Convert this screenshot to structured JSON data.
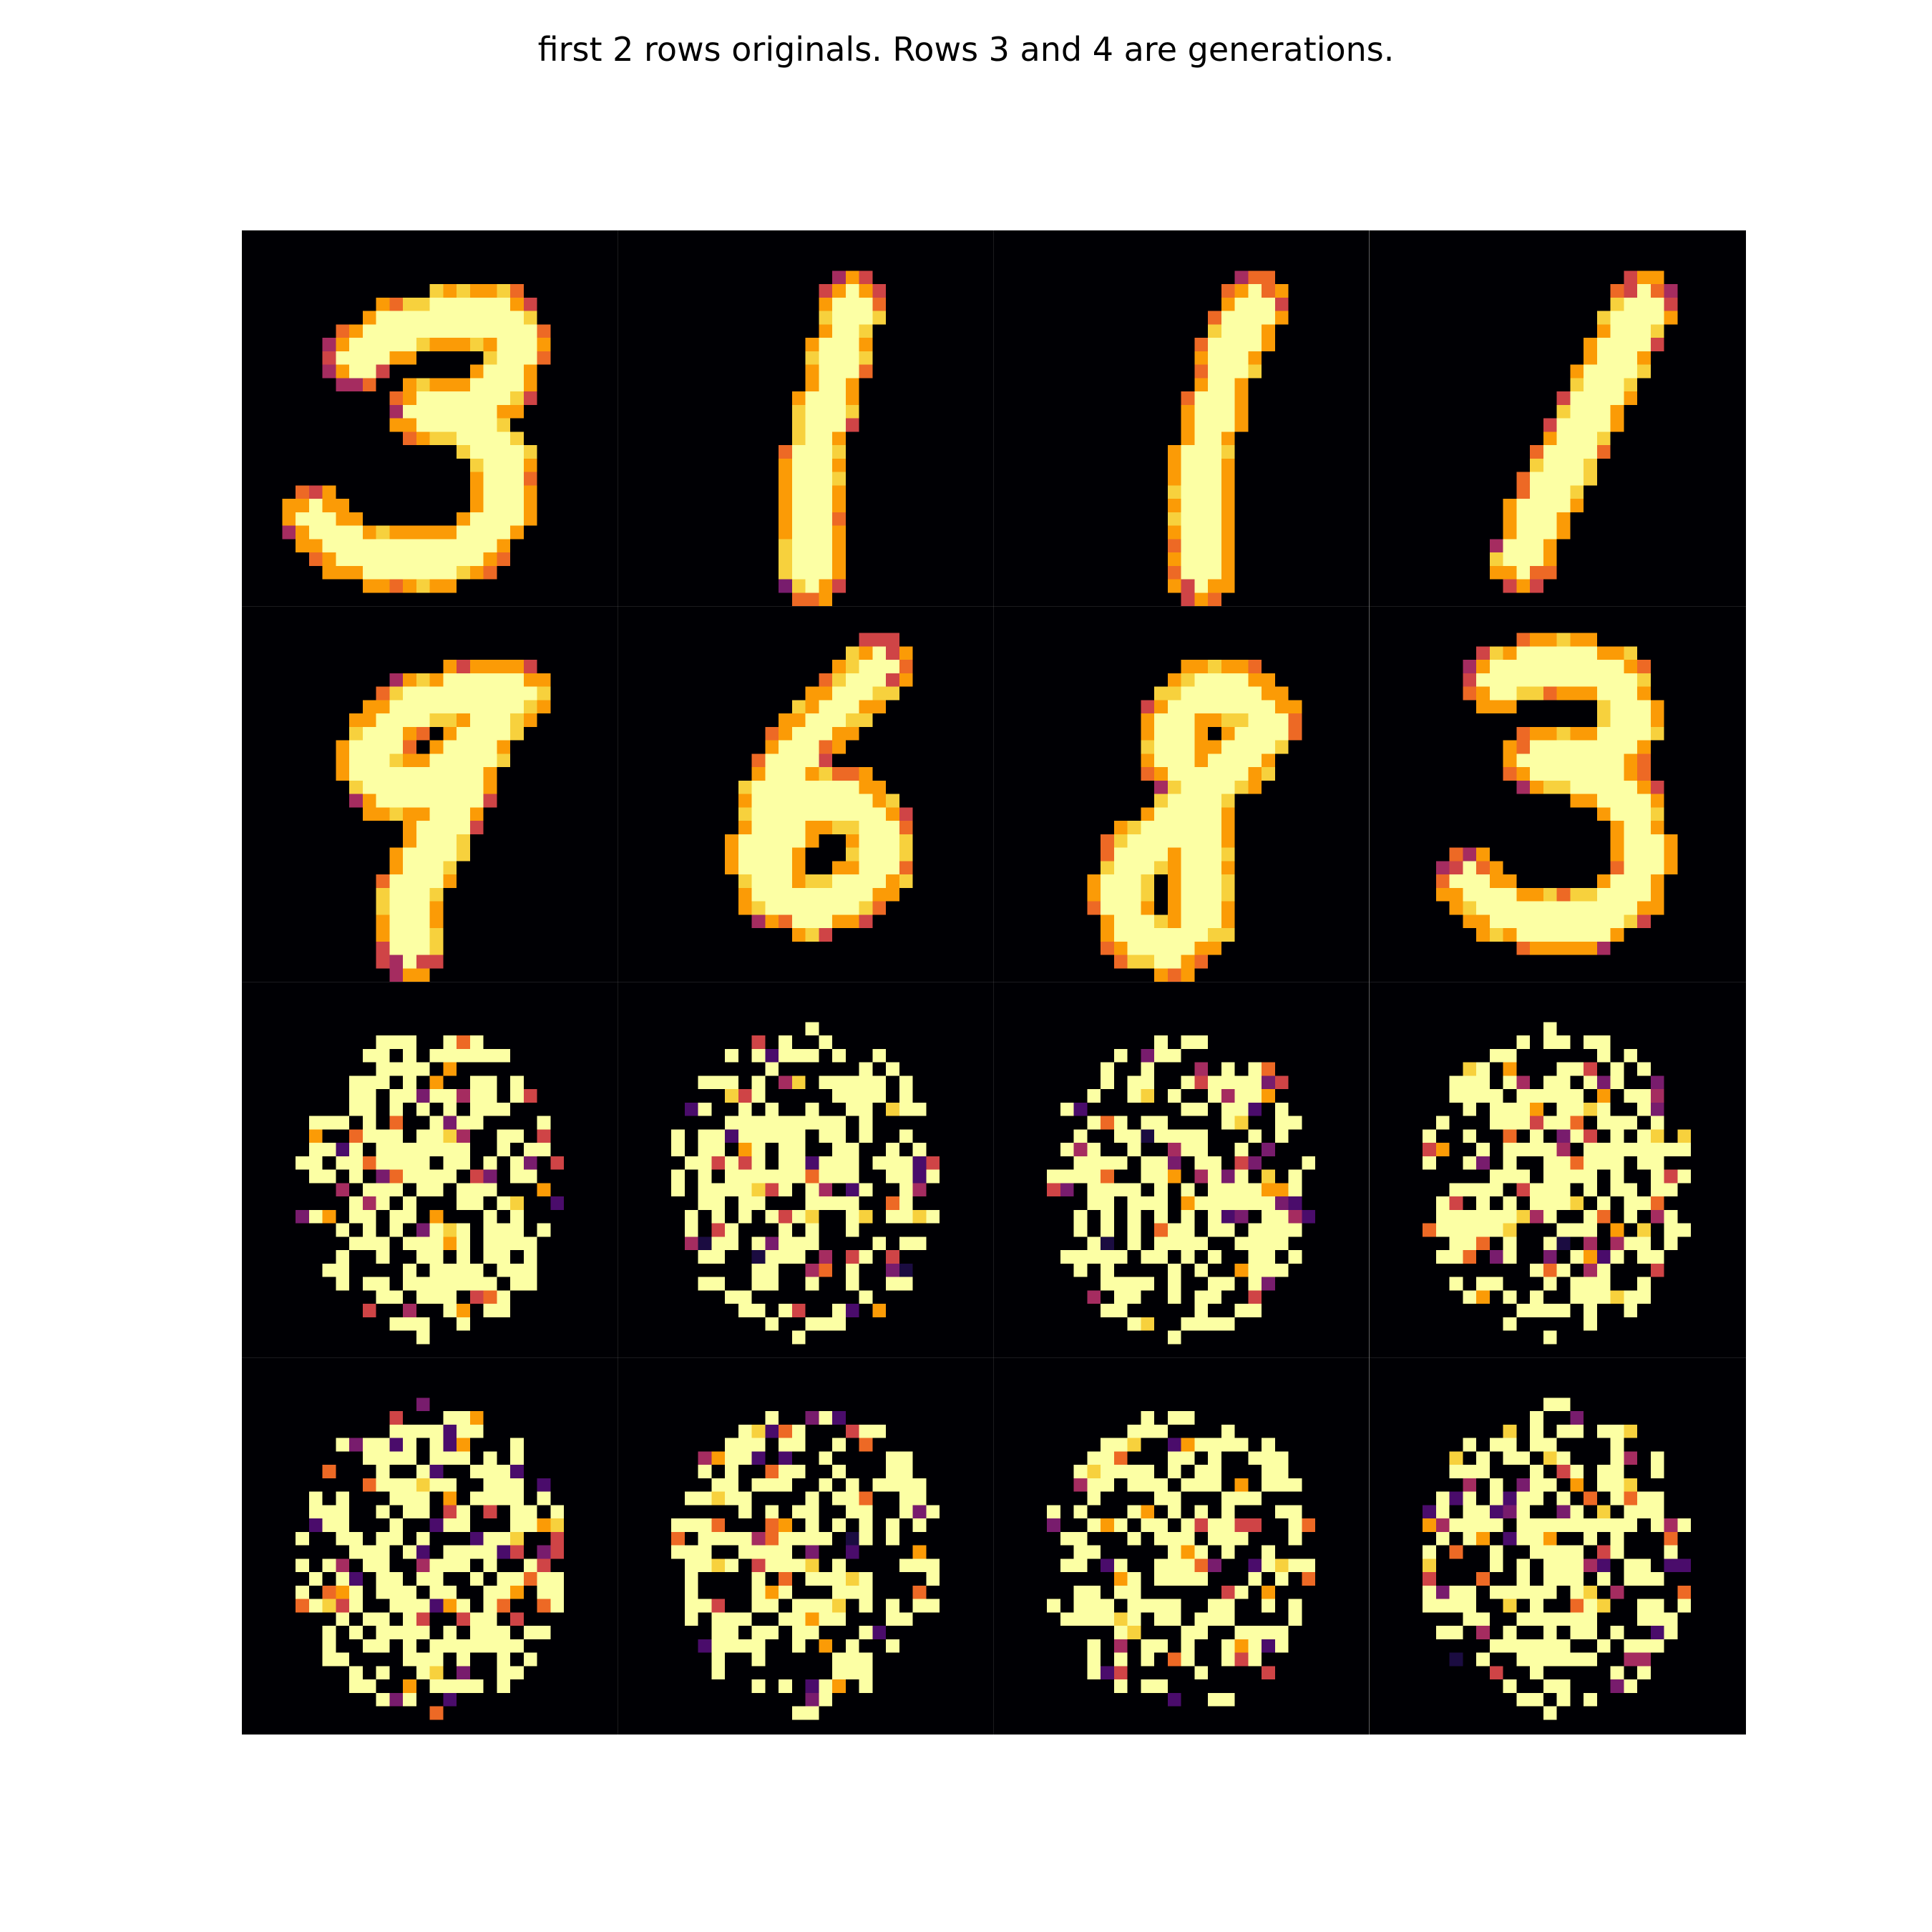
{
  "figure": {
    "title": "first 2 rows originals. Rows 3 and 4 are generations."
  },
  "colormap": {
    "name": "inferno",
    "colors": [
      "#000004",
      "#1b0c41",
      "#4a0c6b",
      "#781c6d",
      "#a52c60",
      "#cf4446",
      "#ed6925",
      "#fb9b06",
      "#f7d13d",
      "#fcffa4"
    ]
  },
  "grid": {
    "rows": 4,
    "cols": 4,
    "row_roles": [
      "original",
      "original",
      "generation",
      "generation"
    ],
    "tiles": [
      {
        "row": 0,
        "col": 0,
        "kind": "original",
        "digit": "3"
      },
      {
        "row": 0,
        "col": 1,
        "kind": "original",
        "digit": "1"
      },
      {
        "row": 0,
        "col": 2,
        "kind": "original",
        "digit": "1"
      },
      {
        "row": 0,
        "col": 3,
        "kind": "original",
        "digit": "1"
      },
      {
        "row": 1,
        "col": 0,
        "kind": "original",
        "digit": "9"
      },
      {
        "row": 1,
        "col": 1,
        "kind": "original",
        "digit": "6"
      },
      {
        "row": 1,
        "col": 2,
        "kind": "original",
        "digit": "8"
      },
      {
        "row": 1,
        "col": 3,
        "kind": "original",
        "digit": "3"
      },
      {
        "row": 2,
        "col": 0,
        "kind": "generation"
      },
      {
        "row": 2,
        "col": 1,
        "kind": "generation"
      },
      {
        "row": 2,
        "col": 2,
        "kind": "generation"
      },
      {
        "row": 2,
        "col": 3,
        "kind": "generation"
      },
      {
        "row": 3,
        "col": 0,
        "kind": "generation"
      },
      {
        "row": 3,
        "col": 1,
        "kind": "generation"
      },
      {
        "row": 3,
        "col": 2,
        "kind": "generation"
      },
      {
        "row": 3,
        "col": 3,
        "kind": "generation"
      }
    ]
  }
}
